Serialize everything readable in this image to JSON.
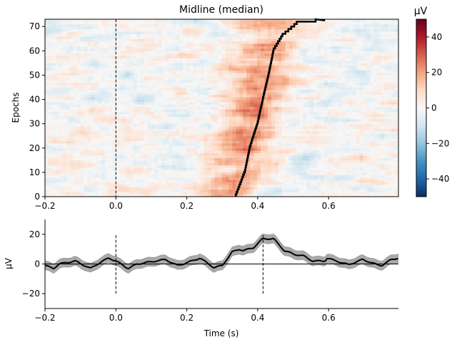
{
  "chart_data": [
    {
      "type": "heatmap",
      "title": "Midline (median)",
      "ylabel": "Epochs",
      "xlim": [
        -0.2,
        0.797
      ],
      "ylim": [
        0,
        73
      ],
      "xticks": [
        -0.2,
        0.0,
        0.2,
        0.4,
        0.6
      ],
      "xtick_labels": [
        "−0.2",
        "0.0",
        "0.2",
        "0.4",
        "0.6"
      ],
      "yticks": [
        0,
        10,
        20,
        30,
        40,
        50,
        60,
        70
      ],
      "ytick_labels": [
        "0",
        "10",
        "20",
        "30",
        "40",
        "50",
        "60",
        "70"
      ],
      "n_epochs": 73,
      "colormap": "RdBu_r",
      "clim": [
        -50,
        50
      ],
      "colorbar": {
        "label": "µV",
        "ticks": [
          -40,
          -20,
          0,
          20,
          40
        ],
        "tick_labels": [
          "−40",
          "−20",
          "0",
          "20",
          "40"
        ]
      },
      "event_line_time": 0.0,
      "sort_line": {
        "epochs": [
          0,
          10,
          20,
          30,
          40,
          50,
          60,
          66,
          70,
          71,
          72.5
        ],
        "times": [
          0.338,
          0.364,
          0.378,
          0.4,
          0.415,
          0.431,
          0.445,
          0.47,
          0.503,
          0.51,
          0.59
        ]
      }
    },
    {
      "type": "line",
      "xlabel": "Time (s)",
      "ylabel": "µV",
      "xlim": [
        -0.2,
        0.797
      ],
      "ylim": [
        -30,
        30
      ],
      "xticks": [
        -0.2,
        0.0,
        0.2,
        0.4,
        0.6
      ],
      "xtick_labels": [
        "−0.2",
        "0.0",
        "0.2",
        "0.4",
        "0.6"
      ],
      "yticks": [
        -20,
        0,
        20
      ],
      "ytick_labels": [
        "−20",
        "0",
        "20"
      ],
      "vlines": [
        0.0,
        0.415
      ],
      "vline_range": [
        -20,
        20
      ],
      "series": [
        {
          "x": [
            -0.2,
            -0.176,
            -0.16,
            -0.115,
            -0.071,
            -0.045,
            -0.02,
            0.0,
            0.035,
            0.06,
            0.1,
            0.14,
            0.173,
            0.19,
            0.237,
            0.277,
            0.3,
            0.328,
            0.348,
            0.36,
            0.388,
            0.414,
            0.445,
            0.475,
            0.503,
            0.529,
            0.555,
            0.59,
            0.595,
            0.656,
            0.696,
            0.737,
            0.75,
            0.777,
            0.797
          ],
          "y": [
            -1,
            -3,
            0,
            2,
            -3,
            1,
            4,
            2,
            -3,
            0,
            1.5,
            3,
            -1,
            0,
            4,
            -2.5,
            -1,
            8,
            10,
            9,
            11,
            17,
            17,
            9,
            6.5,
            5.5,
            2,
            2,
            4,
            -0.5,
            3,
            -0.5,
            -1,
            3,
            4
          ],
          "band_halfwidth": 3
        }
      ]
    }
  ]
}
